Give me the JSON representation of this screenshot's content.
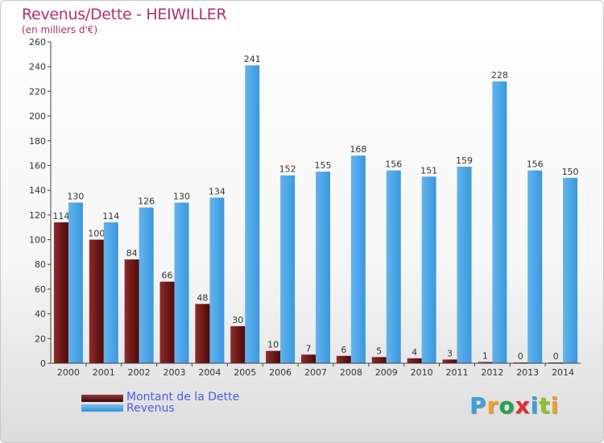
{
  "title": "Revenus/Dette - HEIWILLER",
  "subtitle": "(en milliers d'€)",
  "chart_data": {
    "type": "bar",
    "title": "Revenus/Dette - HEIWILLER",
    "subtitle": "(en milliers d'€)",
    "categories": [
      "2000",
      "2001",
      "2002",
      "2003",
      "2004",
      "2005",
      "2006",
      "2007",
      "2008",
      "2009",
      "2010",
      "2011",
      "2012",
      "2013",
      "2014"
    ],
    "series": [
      {
        "name": "Montant de la Dette",
        "values": [
          114,
          100,
          84,
          66,
          48,
          30,
          10,
          7,
          6,
          5,
          4,
          3,
          1,
          0,
          0
        ]
      },
      {
        "name": "Revenus",
        "values": [
          130,
          114,
          126,
          130,
          134,
          241,
          152,
          155,
          168,
          156,
          151,
          159,
          228,
          156,
          150
        ]
      }
    ],
    "ylim": [
      0,
      260
    ],
    "yticks": [
      0,
      20,
      40,
      60,
      80,
      100,
      120,
      140,
      160,
      180,
      200,
      220,
      240,
      260
    ],
    "grid": false,
    "legend_position": "bottom-left",
    "colors": {
      "debt": "#6e1a1a",
      "revenus": "#4ea6e6"
    }
  },
  "legend": {
    "debt_label": "Montant de la Dette",
    "revenus_label": "Revenus"
  },
  "logo": {
    "letters": [
      "P",
      "r",
      "o",
      "x",
      "i",
      "t",
      "i"
    ],
    "colors": [
      "#3aa0e0",
      "#f0a020",
      "#2aa050",
      "#e03030",
      "#3aa0e0",
      "#90c020",
      "#f0a020"
    ]
  }
}
